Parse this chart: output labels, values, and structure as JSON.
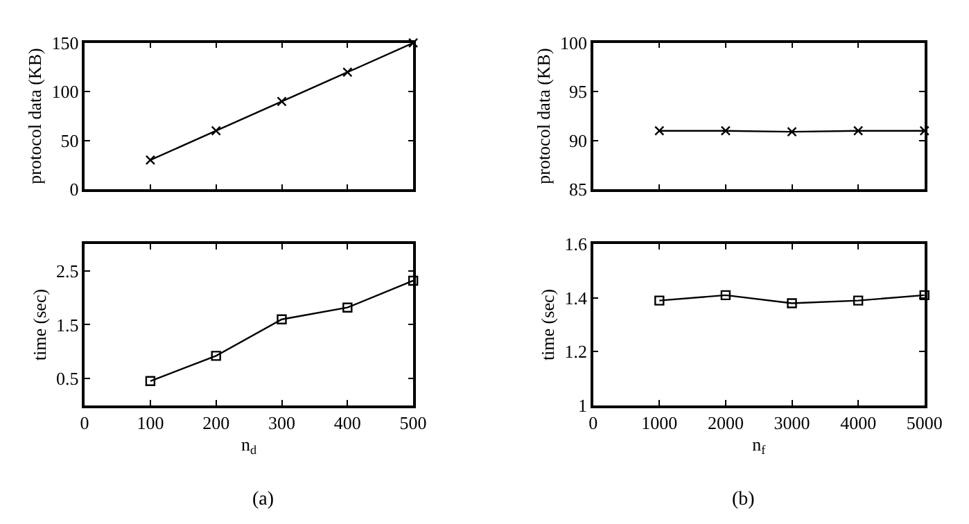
{
  "chart_data": [
    {
      "type": "line",
      "x": [
        100,
        200,
        300,
        400,
        500
      ],
      "values": [
        30,
        60,
        90,
        120,
        150
      ],
      "color": "#000000",
      "marker": "cross",
      "ylabel": "protocol data (KB)",
      "xlim": [
        0,
        500
      ],
      "xticks": [
        0,
        100,
        200,
        300,
        400,
        500
      ],
      "ylim": [
        0,
        150
      ],
      "yticks": [
        0,
        50,
        100,
        150
      ],
      "tick_labels": "y"
    },
    {
      "type": "line",
      "x": [
        1000,
        2000,
        3000,
        4000,
        5000
      ],
      "values": [
        91,
        91,
        90.9,
        91,
        91
      ],
      "color": "#000000",
      "marker": "cross",
      "ylabel": "protocol data (KB)",
      "xlim": [
        0,
        5000
      ],
      "xticks": [
        0,
        1000,
        2000,
        3000,
        4000,
        5000
      ],
      "ylim": [
        85,
        100
      ],
      "yticks": [
        85,
        90,
        95,
        100
      ],
      "tick_labels": "y"
    },
    {
      "type": "line",
      "x": [
        100,
        200,
        300,
        400,
        500
      ],
      "values": [
        0.45,
        0.92,
        1.6,
        1.82,
        2.32
      ],
      "color": "#000000",
      "marker": "square",
      "ylabel": "time (sec)",
      "xlabel": "n$_{d}$",
      "annotations": [
        "(a)"
      ],
      "xlim": [
        0,
        500
      ],
      "xticks": [
        0,
        100,
        200,
        300,
        400,
        500
      ],
      "ylim": [
        0,
        3
      ],
      "yticks": [
        0.5,
        1.5,
        2.5
      ]
    },
    {
      "type": "line",
      "x": [
        1000,
        2000,
        3000,
        4000,
        5000
      ],
      "values": [
        1.39,
        1.41,
        1.38,
        1.39,
        1.41
      ],
      "color": "#000000",
      "marker": "square",
      "ylabel": "time (sec)",
      "xlabel": "n$_{f}$",
      "annotations": [
        "(b)"
      ],
      "xlim": [
        0,
        5000
      ],
      "xticks": [
        0,
        1000,
        2000,
        3000,
        4000,
        5000
      ],
      "ylim": [
        1,
        1.6
      ],
      "yticks": [
        1,
        1.2,
        1.4,
        1.6
      ]
    }
  ]
}
